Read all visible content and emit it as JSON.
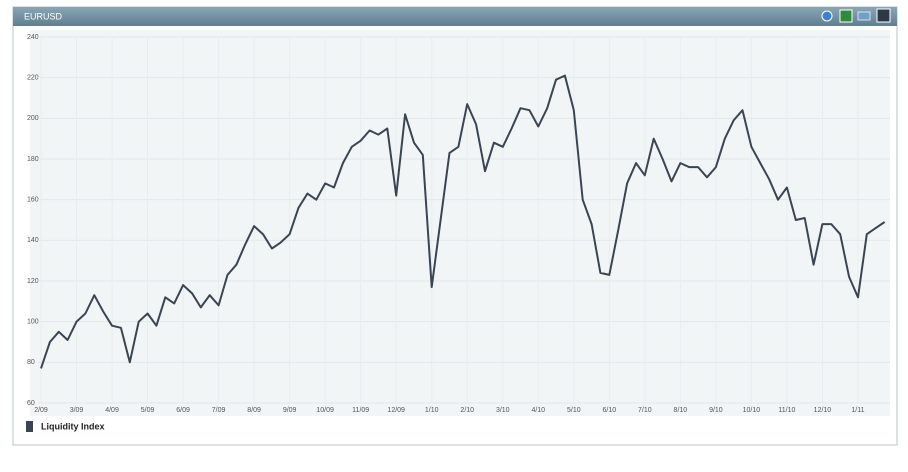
{
  "chart_data": {
    "type": "line",
    "title": "EURUSD",
    "categories": [
      "2/09",
      null,
      null,
      null,
      "3/09",
      null,
      null,
      null,
      "4/09",
      null,
      null,
      null,
      "5/09",
      null,
      null,
      null,
      "6/09",
      null,
      null,
      null,
      "7/09",
      null,
      null,
      null,
      "8/09",
      null,
      null,
      null,
      "9/09",
      null,
      null,
      null,
      "10/09",
      null,
      null,
      null,
      "11/09",
      null,
      null,
      null,
      "12/09",
      null,
      null,
      null,
      "1/10",
      null,
      null,
      null,
      "2/10",
      null,
      null,
      null,
      "3/10",
      null,
      null,
      null,
      "4/10",
      null,
      null,
      null,
      "5/10",
      null,
      null,
      null,
      "6/10",
      null,
      null,
      null,
      "7/10",
      null,
      null,
      null,
      "8/10",
      null,
      null,
      null,
      "9/10",
      null,
      null,
      null,
      "10/10",
      null,
      null,
      null,
      "11/10",
      null,
      null,
      null,
      "12/10",
      null,
      null,
      null,
      "1/11",
      null,
      null,
      null
    ],
    "series": [
      {
        "name": "Liquidity Index",
        "color": "#3a4554",
        "values": [
          77,
          90,
          95,
          91,
          100,
          104,
          113,
          105,
          98,
          97,
          80,
          100,
          104,
          98,
          112,
          109,
          118,
          114,
          107,
          113,
          108,
          123,
          128,
          138,
          147,
          143,
          136,
          139,
          143,
          156,
          163,
          160,
          168,
          166,
          178,
          186,
          189,
          194,
          192,
          195,
          162,
          202,
          188,
          182,
          117,
          150,
          183,
          186,
          207,
          197,
          174,
          188,
          186,
          195,
          205,
          204,
          196,
          205,
          219,
          221,
          204,
          160,
          148,
          124,
          123,
          145,
          168,
          178,
          172,
          190,
          180,
          169,
          178,
          176,
          176,
          171,
          176,
          190,
          199,
          204,
          186,
          178,
          170,
          160,
          166,
          150,
          151,
          128,
          148,
          148,
          143,
          122,
          112,
          143,
          146,
          149
        ]
      }
    ],
    "ylim": [
      60,
      240
    ],
    "yticks": [
      60,
      80,
      100,
      120,
      140,
      160,
      180,
      200,
      220,
      240
    ],
    "grid": true
  }
}
